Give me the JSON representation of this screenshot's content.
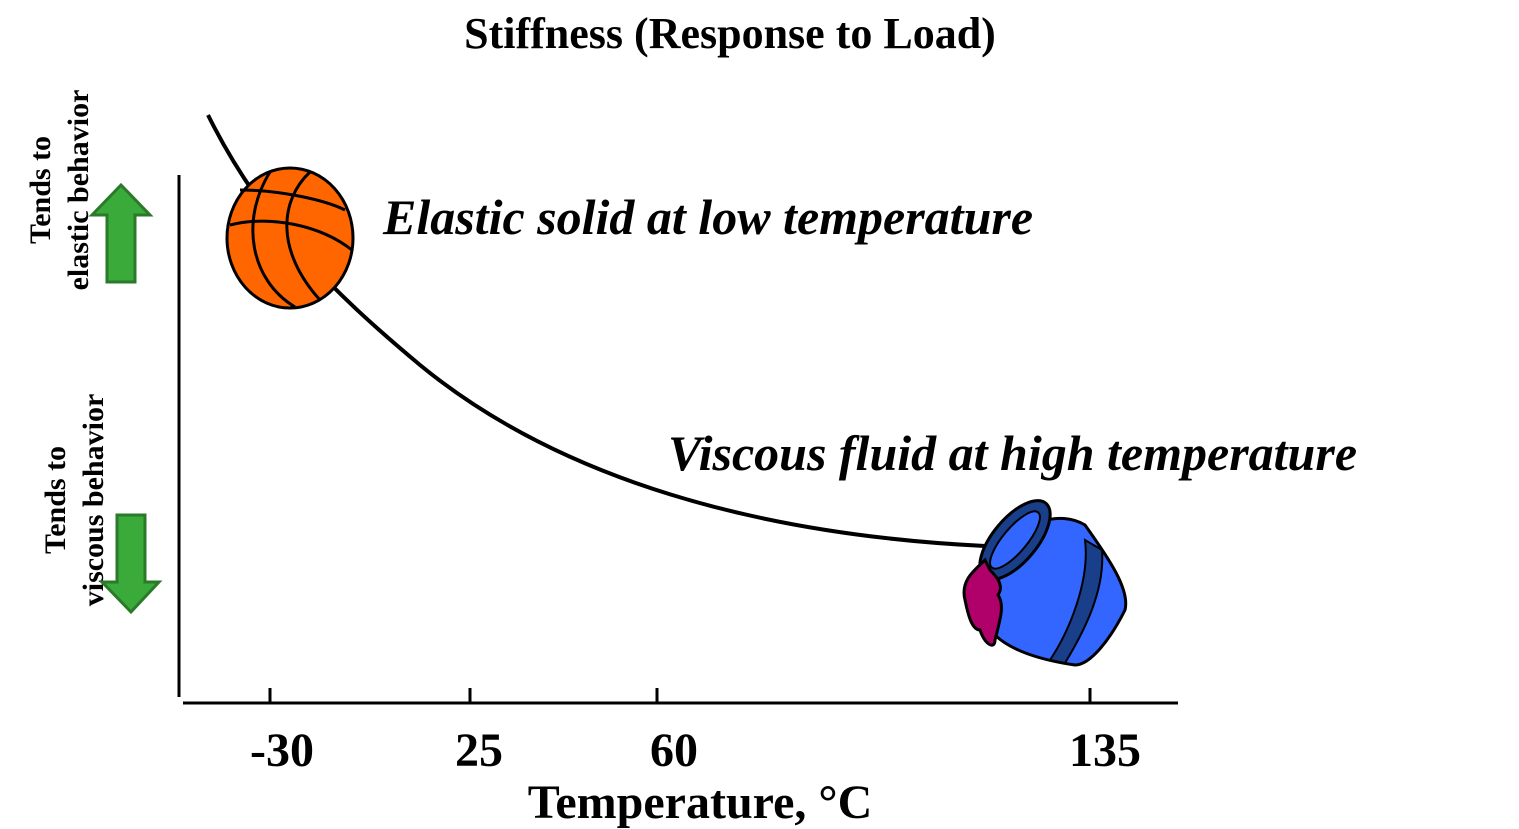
{
  "title": "Stiffness (Response to Load)",
  "y_axis": {
    "upper": [
      "Tends to",
      "elastic behavior"
    ],
    "lower": [
      "Tends to",
      "viscous behavior"
    ]
  },
  "x_axis": {
    "label": "Temperature, °C",
    "ticks": [
      -30,
      25,
      60,
      135
    ]
  },
  "annotations": [
    "Elastic solid at low temperature",
    "Viscous fluid at high temperature"
  ]
}
